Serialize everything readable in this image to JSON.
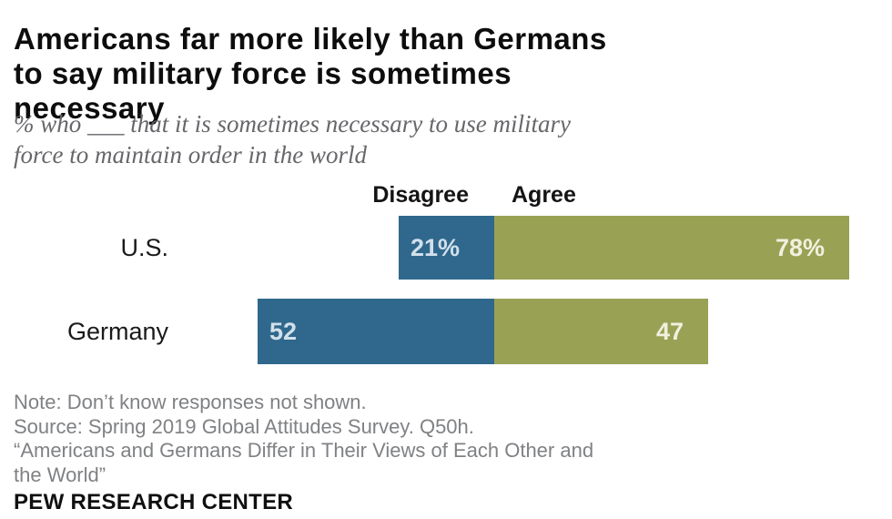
{
  "header": {
    "title_lines": [
      "Americans far more likely than Germans",
      "to say military force is sometimes",
      "necessary"
    ],
    "subtitle_lines": [
      "% who ___ that it is sometimes necessary to use military",
      "force to maintain order in the world"
    ]
  },
  "chart_data": {
    "type": "bar",
    "orientation": "horizontal",
    "diverging": true,
    "title": "Americans far more likely than Germans to say military force is sometimes necessary",
    "subtitle": "% who ___ that it is sometimes necessary to use military force to maintain order in the world",
    "categories": [
      "U.S.",
      "Germany"
    ],
    "series": [
      {
        "name": "Disagree",
        "color": "#2F688C",
        "text_color": "#D2E0EB",
        "values": [
          21,
          52
        ],
        "labels": [
          "21%",
          "52"
        ]
      },
      {
        "name": "Agree",
        "color": "#99A155",
        "text_color": "#F0F1DF",
        "values": [
          78,
          47
        ],
        "labels": [
          "78%",
          "47"
        ]
      }
    ],
    "unit": "percent",
    "legend_position": "top",
    "value_axis_hidden": true
  },
  "footer": {
    "note": "Note: Don’t know responses not shown.",
    "source": "Source: Spring 2019 Global Attitudes Survey. Q50h.",
    "quote_lines": [
      "“Americans and Germans Differ in Their Views of Each Other and",
      "the World”"
    ],
    "brand": "PEW RESEARCH CENTER"
  }
}
